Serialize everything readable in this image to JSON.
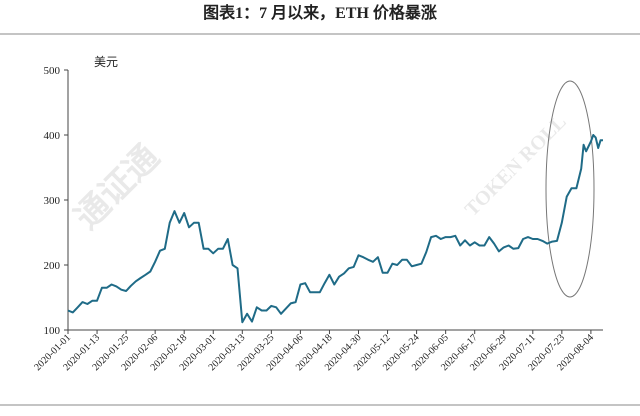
{
  "chart_data": {
    "type": "line",
    "title": "图表1：7 月以来，ETH 价格暴涨",
    "y_label": "美元",
    "watermark": "通证通",
    "watermark_sub": "TOKEN ROLL",
    "x": [
      "2020-01-01",
      "2020-01-03",
      "2020-01-05",
      "2020-01-07",
      "2020-01-09",
      "2020-01-11",
      "2020-01-13",
      "2020-01-15",
      "2020-01-17",
      "2020-01-19",
      "2020-01-21",
      "2020-01-23",
      "2020-01-25",
      "2020-01-27",
      "2020-01-29",
      "2020-01-31",
      "2020-02-02",
      "2020-02-04",
      "2020-02-06",
      "2020-02-08",
      "2020-02-10",
      "2020-02-12",
      "2020-02-14",
      "2020-02-16",
      "2020-02-18",
      "2020-02-20",
      "2020-02-22",
      "2020-02-24",
      "2020-02-26",
      "2020-02-28",
      "2020-03-01",
      "2020-03-03",
      "2020-03-05",
      "2020-03-07",
      "2020-03-09",
      "2020-03-11",
      "2020-03-13",
      "2020-03-15",
      "2020-03-17",
      "2020-03-19",
      "2020-03-21",
      "2020-03-23",
      "2020-03-25",
      "2020-03-27",
      "2020-03-29",
      "2020-03-31",
      "2020-04-02",
      "2020-04-04",
      "2020-04-06",
      "2020-04-08",
      "2020-04-10",
      "2020-04-12",
      "2020-04-14",
      "2020-04-16",
      "2020-04-18",
      "2020-04-20",
      "2020-04-22",
      "2020-04-24",
      "2020-04-26",
      "2020-04-28",
      "2020-04-30",
      "2020-05-02",
      "2020-05-04",
      "2020-05-06",
      "2020-05-08",
      "2020-05-10",
      "2020-05-12",
      "2020-05-14",
      "2020-05-16",
      "2020-05-18",
      "2020-05-20",
      "2020-05-22",
      "2020-05-24",
      "2020-05-26",
      "2020-05-28",
      "2020-05-30",
      "2020-06-01",
      "2020-06-03",
      "2020-06-05",
      "2020-06-07",
      "2020-06-09",
      "2020-06-11",
      "2020-06-13",
      "2020-06-15",
      "2020-06-17",
      "2020-06-19",
      "2020-06-21",
      "2020-06-23",
      "2020-06-25",
      "2020-06-27",
      "2020-06-29",
      "2020-07-01",
      "2020-07-03",
      "2020-07-05",
      "2020-07-07",
      "2020-07-09",
      "2020-07-11",
      "2020-07-13",
      "2020-07-15",
      "2020-07-17",
      "2020-07-19",
      "2020-07-21",
      "2020-07-23",
      "2020-07-25",
      "2020-07-27",
      "2020-07-29",
      "2020-07-31",
      "2020-08-01",
      "2020-08-02",
      "2020-08-04",
      "2020-08-05",
      "2020-08-06",
      "2020-08-07",
      "2020-08-08",
      "2020-08-09"
    ],
    "series": [
      {
        "name": "ETH",
        "color": "#1f6b87",
        "values": [
          130,
          127,
          135,
          143,
          140,
          145,
          145,
          165,
          165,
          170,
          167,
          162,
          160,
          168,
          175,
          180,
          185,
          190,
          205,
          222,
          225,
          265,
          283,
          265,
          280,
          258,
          265,
          265,
          225,
          225,
          218,
          225,
          225,
          240,
          200,
          195,
          112,
          125,
          113,
          135,
          130,
          130,
          137,
          135,
          125,
          133,
          141,
          143,
          170,
          172,
          158,
          158,
          158,
          172,
          185,
          170,
          182,
          187,
          195,
          197,
          215,
          212,
          208,
          205,
          212,
          188,
          188,
          202,
          200,
          208,
          208,
          198,
          200,
          202,
          220,
          243,
          245,
          240,
          243,
          243,
          245,
          230,
          238,
          230,
          235,
          230,
          230,
          243,
          233,
          221,
          227,
          230,
          225,
          226,
          240,
          243,
          240,
          240,
          237,
          233,
          236,
          237,
          265,
          305,
          318,
          318,
          348,
          385,
          375,
          390,
          400,
          396,
          380,
          392,
          392
        ]
      }
    ],
    "xlim": [
      "2020-01-01",
      "2020-08-09"
    ],
    "xticks": [
      "2020-01-01",
      "2020-01-13",
      "2020-01-25",
      "2020-02-06",
      "2020-02-18",
      "2020-03-01",
      "2020-03-13",
      "2020-03-25",
      "2020-04-06",
      "2020-04-18",
      "2020-04-30",
      "2020-05-12",
      "2020-05-24",
      "2020-06-05",
      "2020-06-17",
      "2020-06-29",
      "2020-07-11",
      "2020-07-23",
      "2020-08-04"
    ],
    "ylim": [
      100,
      500
    ],
    "yticks": [
      100,
      200,
      300,
      400,
      500
    ]
  }
}
